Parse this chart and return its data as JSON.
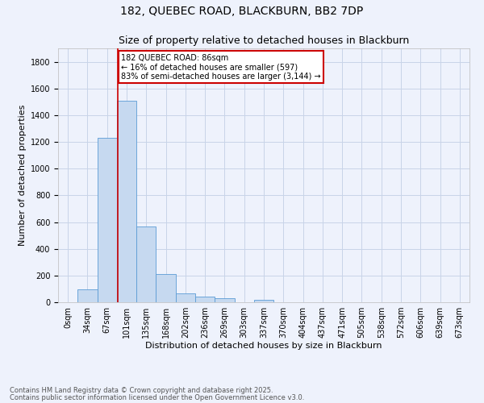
{
  "title1": "182, QUEBEC ROAD, BLACKBURN, BB2 7DP",
  "title2": "Size of property relative to detached houses in Blackburn",
  "xlabel": "Distribution of detached houses by size in Blackburn",
  "ylabel": "Number of detached properties",
  "bar_labels": [
    "0sqm",
    "34sqm",
    "67sqm",
    "101sqm",
    "135sqm",
    "168sqm",
    "202sqm",
    "236sqm",
    "269sqm",
    "303sqm",
    "337sqm",
    "370sqm",
    "404sqm",
    "437sqm",
    "471sqm",
    "505sqm",
    "538sqm",
    "572sqm",
    "606sqm",
    "639sqm",
    "673sqm"
  ],
  "bar_values": [
    0,
    95,
    1230,
    1510,
    570,
    210,
    65,
    45,
    30,
    0,
    20,
    0,
    0,
    0,
    0,
    0,
    0,
    0,
    0,
    0,
    0
  ],
  "bar_color": "#c6d9f0",
  "bar_edge_color": "#5b9bd5",
  "ylim": [
    0,
    1900
  ],
  "yticks": [
    0,
    200,
    400,
    600,
    800,
    1000,
    1200,
    1400,
    1600,
    1800
  ],
  "property_line_bin": 2.56,
  "annotation_text": "182 QUEBEC ROAD: 86sqm\n← 16% of detached houses are smaller (597)\n83% of semi-detached houses are larger (3,144) →",
  "annotation_box_color": "#ffffff",
  "annotation_box_edge": "#cc0000",
  "footer1": "Contains HM Land Registry data © Crown copyright and database right 2025.",
  "footer2": "Contains public sector information licensed under the Open Government Licence v3.0.",
  "bg_color": "#eef2fc",
  "grid_color": "#c8d4e8",
  "title_fontsize": 10,
  "subtitle_fontsize": 9,
  "axis_label_fontsize": 8,
  "tick_fontsize": 7,
  "annotation_fontsize": 7,
  "footer_fontsize": 6
}
